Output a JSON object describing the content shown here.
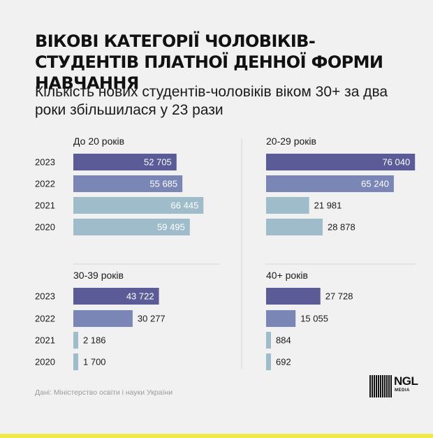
{
  "title": "ВІКОВІ КАТЕГОРІЇ ЧОЛОВІКІВ-СТУДЕНТІВ ПЛАТНОЇ ДЕННОЇ ФОРМИ НАВЧАННЯ",
  "subtitle": "Кількість нових студентів-чоловіків віком 30+ за два роки збільшилася у 23 рази",
  "source": "Дані: Міністерство освіти і науки України",
  "logo": {
    "text": "NGL",
    "sub": "MEDIA"
  },
  "colors": {
    "2023": "#5b5b97",
    "2022": "#7a86b6",
    "2021": "#9fbccb",
    "2020": "#9fbccb",
    "divider": "#d8d8d8",
    "accent": "#f2e84a"
  },
  "chart_data": [
    {
      "type": "bar",
      "title": "До 20 років",
      "categories": [
        "2023",
        "2022",
        "2021",
        "2020"
      ],
      "values": [
        52705,
        55685,
        66445,
        59495
      ],
      "labels": [
        "52 705",
        "55 685",
        "66 445",
        "59 495"
      ]
    },
    {
      "type": "bar",
      "title": "20-29 років",
      "categories": [
        "2023",
        "2022",
        "2021",
        "2020"
      ],
      "values": [
        76040,
        65240,
        21981,
        28878
      ],
      "labels": [
        "76 040",
        "65 240",
        "21 981",
        "28 878"
      ]
    },
    {
      "type": "bar",
      "title": "30-39 років",
      "categories": [
        "2023",
        "2022",
        "2021",
        "2020"
      ],
      "values": [
        43722,
        30277,
        2186,
        1700
      ],
      "labels": [
        "43 722",
        "30 277",
        "2 186",
        "1 700"
      ]
    },
    {
      "type": "bar",
      "title": "40+ років",
      "categories": [
        "2023",
        "2022",
        "2021",
        "2020"
      ],
      "values": [
        27728,
        15055,
        884,
        692
      ],
      "labels": [
        "27 728",
        "15 055",
        "884",
        "692"
      ]
    }
  ]
}
